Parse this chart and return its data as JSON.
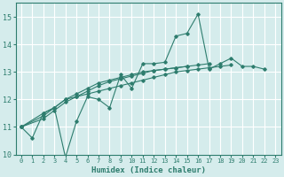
{
  "xlabel": "Humidex (Indice chaleur)",
  "ylabel": "",
  "bg_color": "#d5ecec",
  "grid_color": "#ffffff",
  "line_color": "#2e7d6e",
  "xlim": [
    -0.5,
    23.5
  ],
  "ylim": [
    10,
    15.5
  ],
  "yticks": [
    10,
    11,
    12,
    13,
    14,
    15
  ],
  "xticks": [
    0,
    1,
    2,
    3,
    4,
    5,
    6,
    7,
    8,
    9,
    10,
    11,
    12,
    13,
    14,
    15,
    16,
    17,
    18,
    19,
    20,
    21,
    22,
    23
  ],
  "series": [
    [
      11.0,
      10.6,
      11.5,
      11.7,
      9.9,
      11.2,
      12.1,
      12.0,
      11.7,
      12.9,
      12.4,
      13.3,
      13.3,
      13.35,
      14.3,
      14.4,
      15.1,
      13.1,
      13.3,
      13.5,
      13.2,
      13.2,
      13.1
    ],
    [
      11.0,
      11.5,
      11.7,
      12.0,
      12.1,
      12.2,
      12.3,
      12.4,
      12.5,
      12.6,
      12.7,
      12.8,
      12.9,
      13.0,
      13.05,
      13.1,
      13.15,
      13.2,
      13.25
    ],
    [
      11.0,
      11.4,
      11.7,
      12.0,
      12.2,
      12.4,
      12.6,
      12.7,
      12.8,
      12.9,
      13.0,
      13.05,
      13.1,
      13.15,
      13.2
    ],
    [
      11.0,
      11.3,
      11.6,
      11.9,
      12.1,
      12.3,
      12.5,
      12.65,
      12.75,
      12.85,
      12.95,
      13.05,
      13.1,
      13.15,
      13.2,
      13.25,
      13.3
    ]
  ],
  "series_x": [
    [
      0,
      1,
      2,
      3,
      4,
      5,
      6,
      7,
      8,
      9,
      10,
      11,
      12,
      13,
      14,
      15,
      16,
      17,
      18,
      19,
      20,
      21,
      22
    ],
    [
      0,
      2,
      3,
      4,
      5,
      6,
      7,
      8,
      9,
      10,
      11,
      12,
      13,
      14,
      15,
      16,
      17,
      18,
      19
    ],
    [
      0,
      2,
      3,
      4,
      5,
      6,
      7,
      8,
      9,
      10,
      11,
      12,
      13,
      14,
      15
    ],
    [
      0,
      2,
      3,
      4,
      5,
      6,
      7,
      8,
      9,
      10,
      11,
      12,
      13,
      14,
      15,
      16,
      17
    ]
  ]
}
